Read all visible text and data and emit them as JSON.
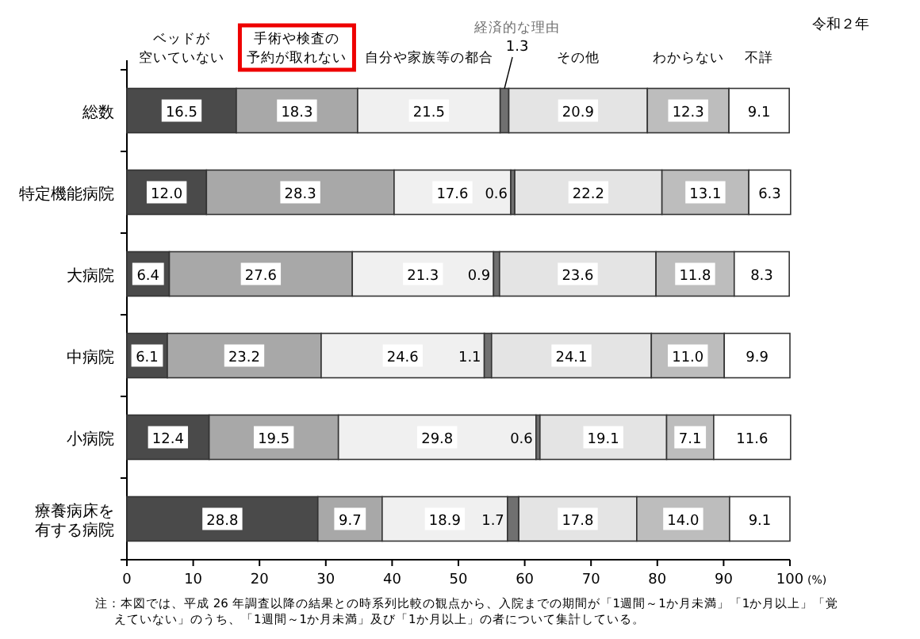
{
  "chart_data": {
    "type": "bar",
    "orientation": "horizontal",
    "stacked": true,
    "title": "令和２年",
    "xlabel": "(%)",
    "categories": [
      "総数",
      "特定機能病院",
      "大病院",
      "中病院",
      "小病院",
      "療養病床を有する病院"
    ],
    "series": [
      {
        "name": "ベッドが空いていない",
        "color": "#4a4a4a",
        "values": [
          16.5,
          12.0,
          6.4,
          6.1,
          12.4,
          28.8
        ],
        "value_labels": [
          "16.5",
          "12.0",
          "6.4",
          "6.1",
          "12.4",
          "28.8"
        ]
      },
      {
        "name": "手術や検査の予約が取れない",
        "color": "#a8a8a8",
        "values": [
          18.3,
          28.3,
          27.6,
          23.2,
          19.5,
          9.7
        ],
        "value_labels": [
          "18.3",
          "28.3",
          "27.6",
          "23.2",
          "19.5",
          "9.7"
        ]
      },
      {
        "name": "自分や家族等の都合",
        "color": "#f0f0f0",
        "values": [
          21.5,
          17.6,
          21.3,
          24.6,
          29.8,
          18.9
        ],
        "value_labels": [
          "21.5",
          "17.6",
          "21.3",
          "24.6",
          "29.8",
          "18.9"
        ]
      },
      {
        "name": "経済的な理由",
        "color": "#707070",
        "values": [
          1.3,
          0.6,
          0.9,
          1.1,
          0.6,
          1.7
        ],
        "value_labels": [
          "1.3",
          "0.6",
          "0.9",
          "1.1",
          "0.6",
          "1.7"
        ]
      },
      {
        "name": "その他",
        "color": "#e4e4e4",
        "values": [
          20.9,
          22.2,
          23.6,
          24.1,
          19.1,
          17.8
        ],
        "value_labels": [
          "20.9",
          "22.2",
          "23.6",
          "24.1",
          "19.1",
          "17.8"
        ]
      },
      {
        "name": "わからない",
        "color": "#bdbdbd",
        "values": [
          12.3,
          13.1,
          11.8,
          11.0,
          7.1,
          14.0
        ],
        "value_labels": [
          "12.3",
          "13.1",
          "11.8",
          "11.0",
          "7.1",
          "14.0"
        ]
      },
      {
        "name": "不詳",
        "color": "#ffffff",
        "values": [
          9.1,
          6.3,
          8.3,
          9.9,
          11.6,
          9.1
        ],
        "value_labels": [
          "9.1",
          "6.3",
          "8.3",
          "9.9",
          "11.6",
          "9.1"
        ]
      }
    ],
    "xlim": [
      0,
      100
    ],
    "xticks": [
      0,
      10,
      20,
      30,
      40,
      50,
      60,
      70,
      80,
      90,
      100
    ],
    "annotations": [
      "注：本図では、平成 26 年調査以降の結果との時系列比較の観点から、入院までの期間が「1週間～1か月未満」「1か月以上」「覚えていない」のうち、「1週間～1か月未満」及び「1か月以上」の者について集計している。"
    ]
  }
}
